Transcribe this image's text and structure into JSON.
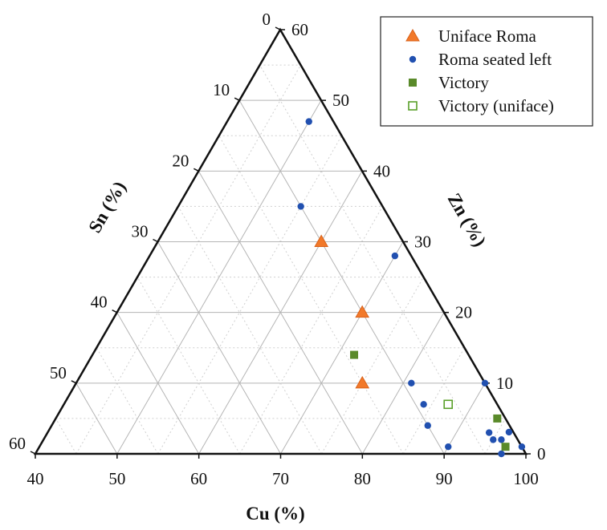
{
  "chart_data": {
    "type": "scatter",
    "subtype": "ternary",
    "title": "",
    "axes": {
      "Cu": {
        "label": "Cu (%)",
        "ticks": [
          "40",
          "50",
          "60",
          "70",
          "80",
          "90",
          "100"
        ],
        "range": [
          40,
          100
        ]
      },
      "Sn": {
        "label": "Sn (%)",
        "ticks": [
          "0",
          "10",
          "20",
          "30",
          "40",
          "50",
          "60"
        ],
        "range": [
          0,
          60
        ]
      },
      "Zn": {
        "label": "Zn (%)",
        "ticks": [
          "0",
          "10",
          "20",
          "30",
          "40",
          "50",
          "60"
        ],
        "range": [
          0,
          60
        ]
      }
    },
    "grid": true,
    "legend_position": "top-right",
    "series": [
      {
        "name": "Uniface Roma",
        "marker": "triangle",
        "color": "#f2792a",
        "points": [
          {
            "Cu": 60,
            "Sn": 10,
            "Zn": 30
          },
          {
            "Cu": 70,
            "Sn": 10,
            "Zn": 20
          },
          {
            "Cu": 75,
            "Sn": 15,
            "Zn": 10
          }
        ]
      },
      {
        "name": "Roma seated left",
        "marker": "circle",
        "color": "#2150b0",
        "points": [
          {
            "Cu": 50,
            "Sn": 3,
            "Zn": 47
          },
          {
            "Cu": 55,
            "Sn": 10,
            "Zn": 35
          },
          {
            "Cu": 70,
            "Sn": 2,
            "Zn": 28
          },
          {
            "Cu": 81,
            "Sn": 9,
            "Zn": 10
          },
          {
            "Cu": 84,
            "Sn": 9,
            "Zn": 7
          },
          {
            "Cu": 86,
            "Sn": 10,
            "Zn": 4
          },
          {
            "Cu": 90,
            "Sn": 9,
            "Zn": 1
          },
          {
            "Cu": 90,
            "Sn": 0,
            "Zn": 10
          },
          {
            "Cu": 94,
            "Sn": 3,
            "Zn": 3
          },
          {
            "Cu": 95,
            "Sn": 3,
            "Zn": 2
          },
          {
            "Cu": 96,
            "Sn": 2,
            "Zn": 2
          },
          {
            "Cu": 97,
            "Sn": 0,
            "Zn": 2
          },
          {
            "Cu": 97,
            "Sn": 3,
            "Zn": 0
          },
          {
            "Cu": 99,
            "Sn": 0,
            "Zn": 1
          }
        ]
      },
      {
        "name": "Victory",
        "marker": "square",
        "color": "#5a8a2a",
        "points": [
          {
            "Cu": 72,
            "Sn": 14,
            "Zn": 14
          },
          {
            "Cu": 94,
            "Sn": 1,
            "Zn": 5
          },
          {
            "Cu": 97,
            "Sn": 2,
            "Zn": 1
          }
        ]
      },
      {
        "name": "Victory (uniface)",
        "marker": "square-open",
        "color": "#5aa02a",
        "points": [
          {
            "Cu": 87,
            "Sn": 6,
            "Zn": 7
          }
        ]
      }
    ]
  }
}
